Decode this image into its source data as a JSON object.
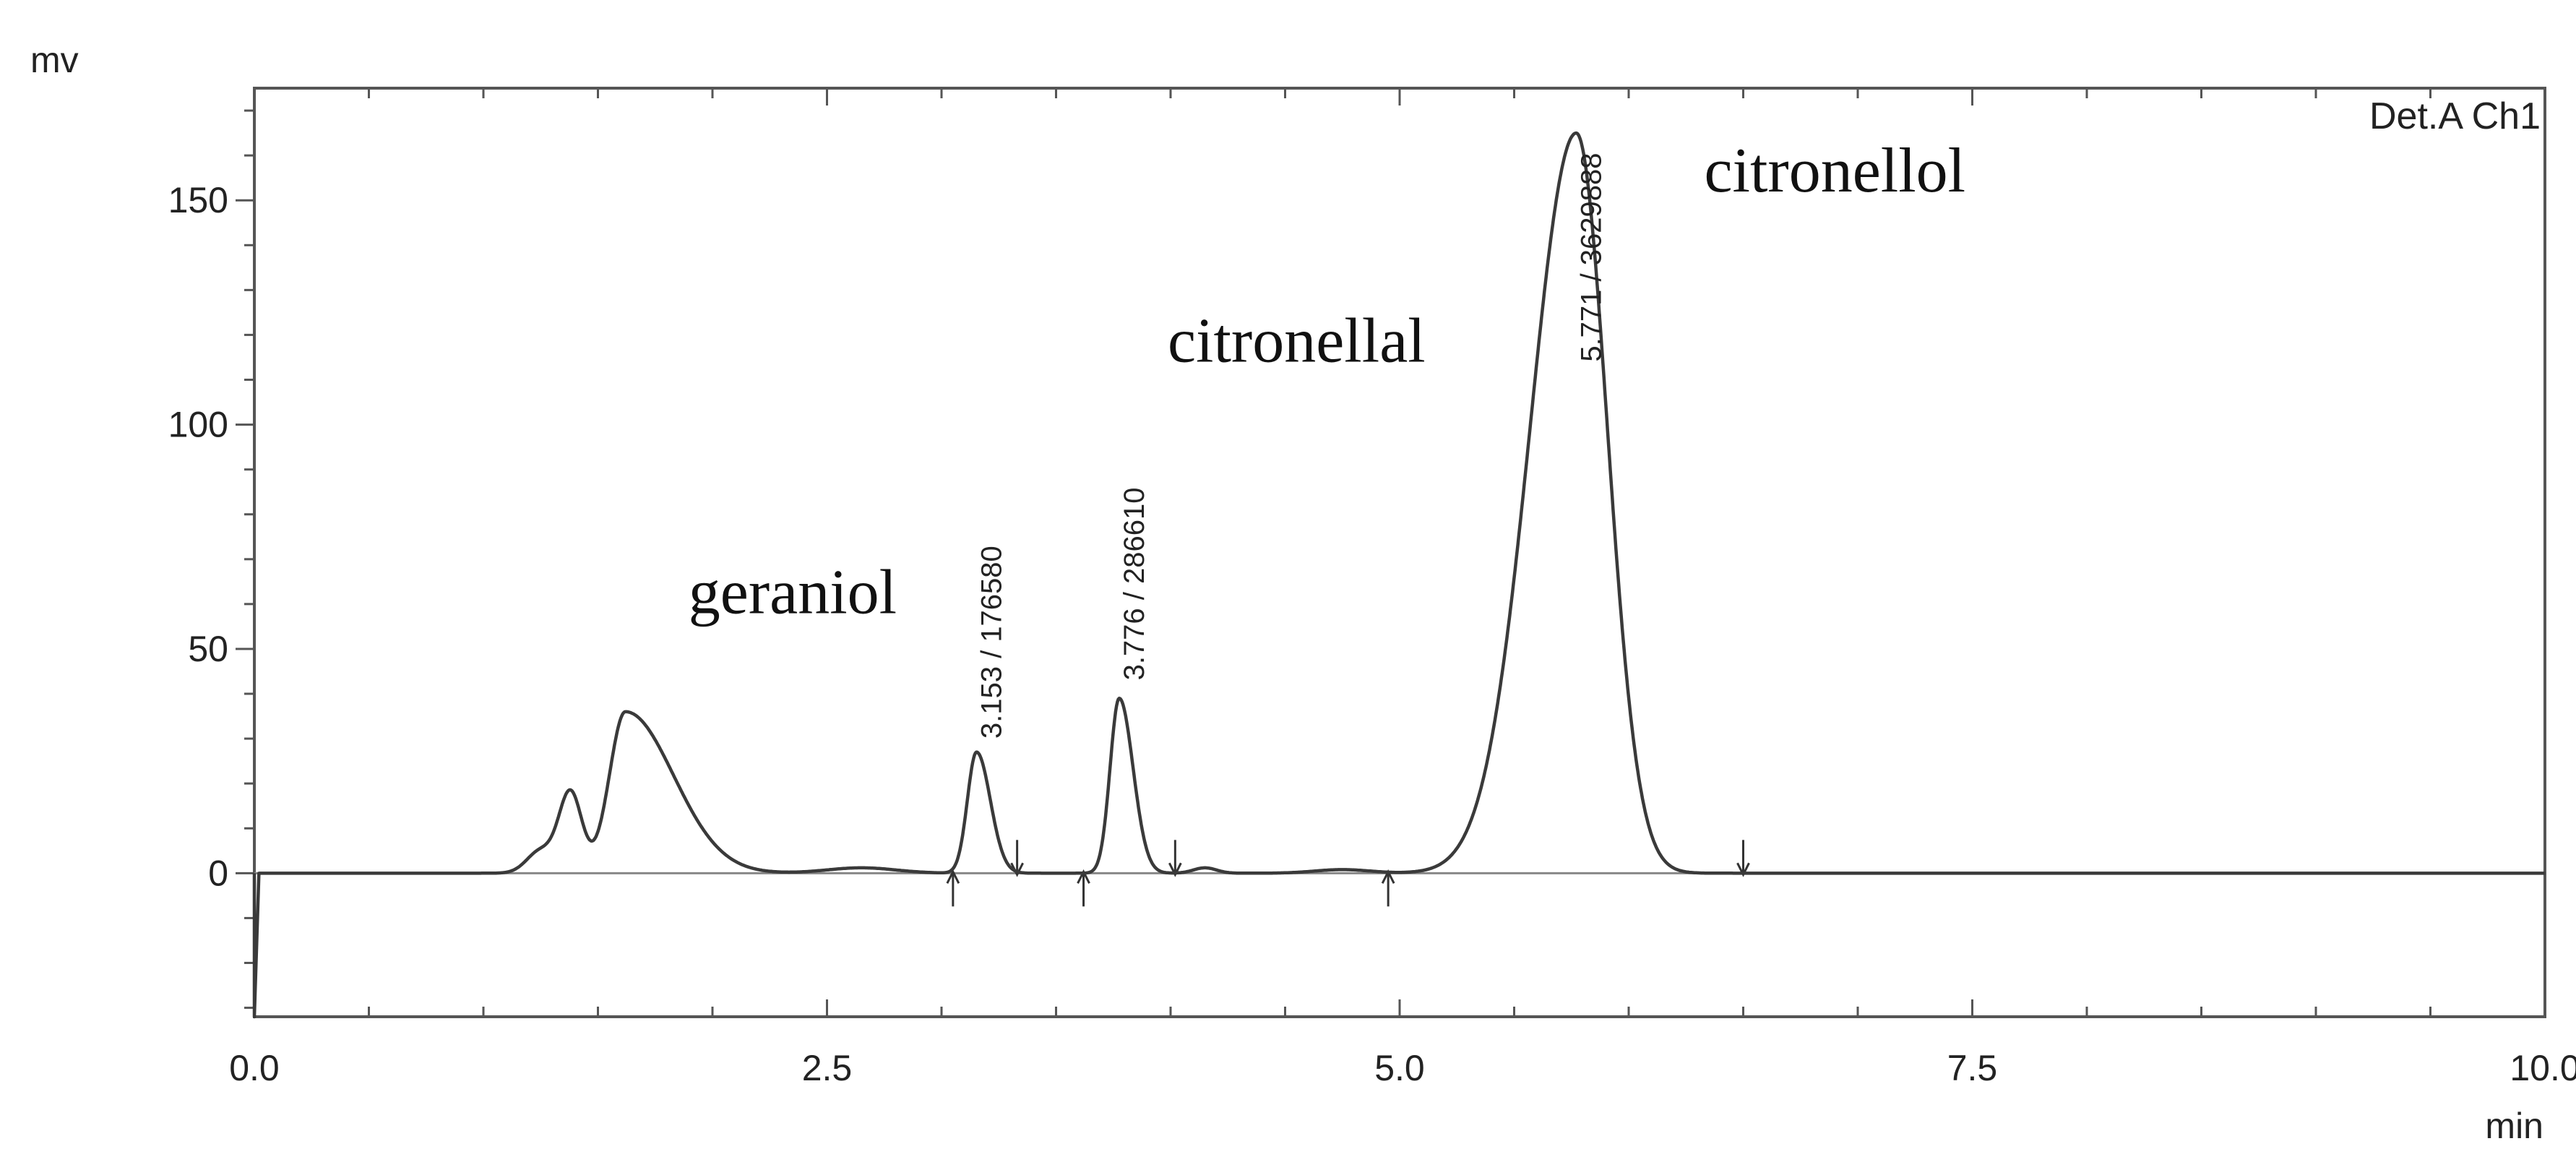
{
  "chart_data": {
    "type": "line",
    "title": "",
    "detector_label": "Det.A Ch1",
    "xlabel": "min",
    "ylabel": "mv",
    "xlim": [
      0,
      10
    ],
    "ylim": [
      -32,
      175
    ],
    "x_ticks": [
      0,
      2.5,
      5,
      7.5,
      10
    ],
    "x_tick_labels": [
      "0.0",
      "2.5",
      "5.0",
      "7.5",
      "10.0"
    ],
    "y_ticks": [
      0,
      50,
      100,
      150
    ],
    "y_tick_labels": [
      "0",
      "50",
      "100",
      "150"
    ],
    "grid": false,
    "series": [
      {
        "peaks": [
          {
            "rt": 1.38,
            "height": 18,
            "sigma_l": 0.05,
            "sigma_r": 0.05
          },
          {
            "rt": 1.62,
            "height": 36,
            "sigma_l": 0.07,
            "sigma_r": 0.21
          },
          {
            "rt": 1.25,
            "height": 5,
            "sigma_l": 0.06,
            "sigma_r": 0.06
          },
          {
            "rt": 2.65,
            "height": 1.2,
            "sigma_l": 0.15,
            "sigma_r": 0.15
          },
          {
            "rt": 3.153,
            "height": 27,
            "sigma_l": 0.04,
            "sigma_r": 0.06
          },
          {
            "rt": 3.776,
            "height": 39,
            "sigma_l": 0.04,
            "sigma_r": 0.06
          },
          {
            "rt": 4.15,
            "height": 1.2,
            "sigma_l": 0.05,
            "sigma_r": 0.05
          },
          {
            "rt": 4.75,
            "height": 0.8,
            "sigma_l": 0.12,
            "sigma_r": 0.12
          },
          {
            "rt": 5.771,
            "height": 165,
            "sigma_l": 0.2,
            "sigma_r": 0.135
          }
        ],
        "start_dip": {
          "x_end": 0.02,
          "y_min": -32
        }
      }
    ],
    "annotations": [
      {
        "text": "geraniol",
        "x": 2.35,
        "y": 58
      },
      {
        "text": "citronellal",
        "x": 4.55,
        "y": 114
      },
      {
        "text": "citronellol",
        "x": 6.9,
        "y": 152
      }
    ],
    "peak_labels": [
      {
        "text": "3.153 / 176580",
        "x": 3.153,
        "y_bottom": 30
      },
      {
        "text": "3.776 / 286610",
        "x": 3.776,
        "y_bottom": 43
      },
      {
        "text": "5.771 / 3629888",
        "x": 5.771,
        "y_bottom": 114
      }
    ],
    "integration_markers": [
      {
        "x": 3.05,
        "dir": "up"
      },
      {
        "x": 3.33,
        "dir": "down"
      },
      {
        "x": 3.62,
        "dir": "up"
      },
      {
        "x": 4.02,
        "dir": "down"
      },
      {
        "x": 4.95,
        "dir": "up"
      },
      {
        "x": 6.5,
        "dir": "down"
      }
    ]
  }
}
